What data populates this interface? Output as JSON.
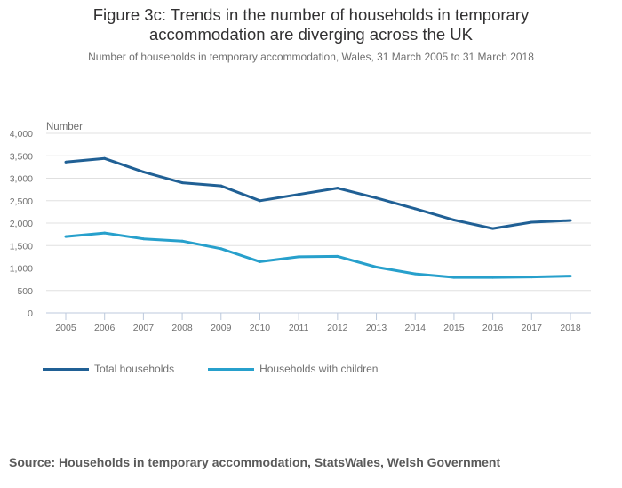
{
  "chart_data": {
    "type": "line",
    "title": "Figure 3c: Trends in the number of households in temporary accommodation are diverging across the UK",
    "title_lines": [
      "Figure 3c: Trends in the number of households in temporary",
      "accommodation are diverging across the UK"
    ],
    "subtitle": "Number of households in temporary accommodation, Wales, 31 March 2005 to 31 March 2018",
    "xlabel": "",
    "ylabel": "Number",
    "ylim": [
      0,
      4000
    ],
    "yticks": [
      0,
      500,
      1000,
      1500,
      2000,
      2500,
      3000,
      3500,
      4000
    ],
    "ytick_labels": [
      "0",
      "500",
      "1,000",
      "1,500",
      "2,000",
      "2,500",
      "3,000",
      "3,500",
      "4,000"
    ],
    "grid": true,
    "legend_position": "bottom-left",
    "x": [
      "2005",
      "2006",
      "2007",
      "2008",
      "2009",
      "2010",
      "2011",
      "2012",
      "2013",
      "2014",
      "2015",
      "2016",
      "2017",
      "2018"
    ],
    "series": [
      {
        "name": "Total households",
        "color": "#206095",
        "values": [
          3360,
          3440,
          3140,
          2900,
          2830,
          2500,
          2640,
          2780,
          2560,
          2320,
          2070,
          1880,
          2020,
          2060
        ]
      },
      {
        "name": "Households with children",
        "color": "#27a0cc",
        "values": [
          1700,
          1780,
          1650,
          1600,
          1430,
          1140,
          1250,
          1260,
          1020,
          870,
          790,
          790,
          800,
          820
        ]
      }
    ],
    "source": "Source: Households in temporary accommodation, StatsWales, Welsh Government"
  }
}
